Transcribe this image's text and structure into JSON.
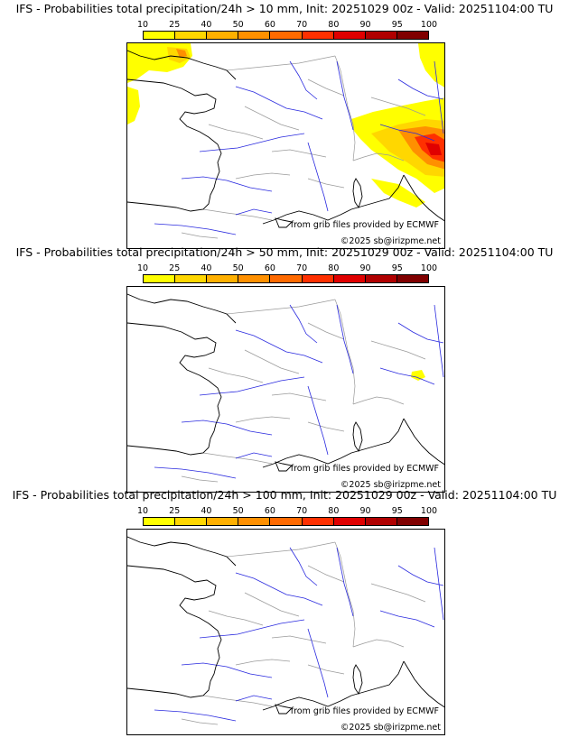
{
  "colorbar": {
    "ticks": [
      "10",
      "25",
      "40",
      "50",
      "60",
      "70",
      "80",
      "90",
      "95",
      "100"
    ],
    "colors": [
      "#ffff00",
      "#ffd700",
      "#ffb000",
      "#ff9000",
      "#ff6a00",
      "#ff3000",
      "#e00000",
      "#b00000",
      "#800000"
    ]
  },
  "credits": {
    "source": "from grib files provided by ECMWF",
    "copyright": "©2025 sb@irizpme.net"
  },
  "panels": [
    {
      "title": "IFS - Probabilities total precipitation/24h > 10 mm, Init: 20251029 00z - Valid: 20251104:00 TU",
      "threshold_mm": 10,
      "precip_areas": [
        "English Channel / southern England",
        "Alps / northern Italy / Adriatic",
        "northeast corner"
      ]
    },
    {
      "title": "IFS - Probabilities total precipitation/24h > 50 mm, Init: 20251029 00z - Valid: 20251104:00 TU",
      "threshold_mm": 50,
      "precip_areas": [
        "small spot near Alps / northern Italy"
      ]
    },
    {
      "title": "IFS - Probabilities total precipitation/24h > 100 mm, Init: 20251029 00z - Valid: 20251104:00 TU",
      "threshold_mm": 100,
      "precip_areas": []
    }
  ]
}
